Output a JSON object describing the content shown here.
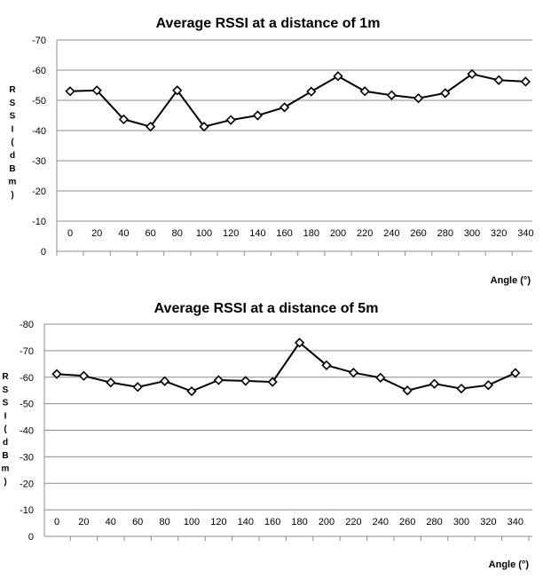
{
  "chart_data": [
    {
      "type": "line",
      "title": "Average RSSI at a distance of 1m",
      "xlabel": "Angle (°)",
      "ylabel": "RSSI (dBm)",
      "x": [
        0,
        20,
        40,
        60,
        80,
        100,
        120,
        140,
        160,
        180,
        200,
        220,
        240,
        260,
        280,
        300,
        320,
        340
      ],
      "series": [
        {
          "values": [
            -53,
            -53.3,
            -43.7,
            -41.3,
            -53.3,
            -41.3,
            -43.5,
            -45,
            -47.7,
            -52.9,
            -58,
            -53,
            -51.7,
            -50.7,
            -52.4,
            -58.7,
            -56.7,
            -56.2
          ]
        }
      ],
      "ylim": [
        0,
        -70
      ],
      "yticks": [
        0,
        -10,
        -20,
        -30,
        -40,
        -50,
        -60,
        -70
      ],
      "grid": true,
      "line_color": "#000000",
      "marker": "diamond"
    },
    {
      "type": "line",
      "title": "Average RSSI at a distance of 5m",
      "xlabel": "Angle (°)",
      "ylabel": "RSSI (dBm)",
      "x": [
        0,
        20,
        40,
        60,
        80,
        100,
        120,
        140,
        160,
        180,
        200,
        220,
        240,
        260,
        280,
        300,
        320,
        340
      ],
      "series": [
        {
          "values": [
            -61.2,
            -60.5,
            -58,
            -56.3,
            -58.5,
            -54.7,
            -58.9,
            -58.6,
            -58.2,
            -73,
            -64.5,
            -61.7,
            -59.8,
            -55,
            -57.5,
            -55.7,
            -57,
            -61.6
          ]
        }
      ],
      "ylim": [
        0,
        -80
      ],
      "yticks": [
        0,
        -10,
        -20,
        -30,
        -40,
        -50,
        -60,
        -70,
        -80
      ],
      "grid": true,
      "line_color": "#000000",
      "marker": "diamond"
    }
  ]
}
